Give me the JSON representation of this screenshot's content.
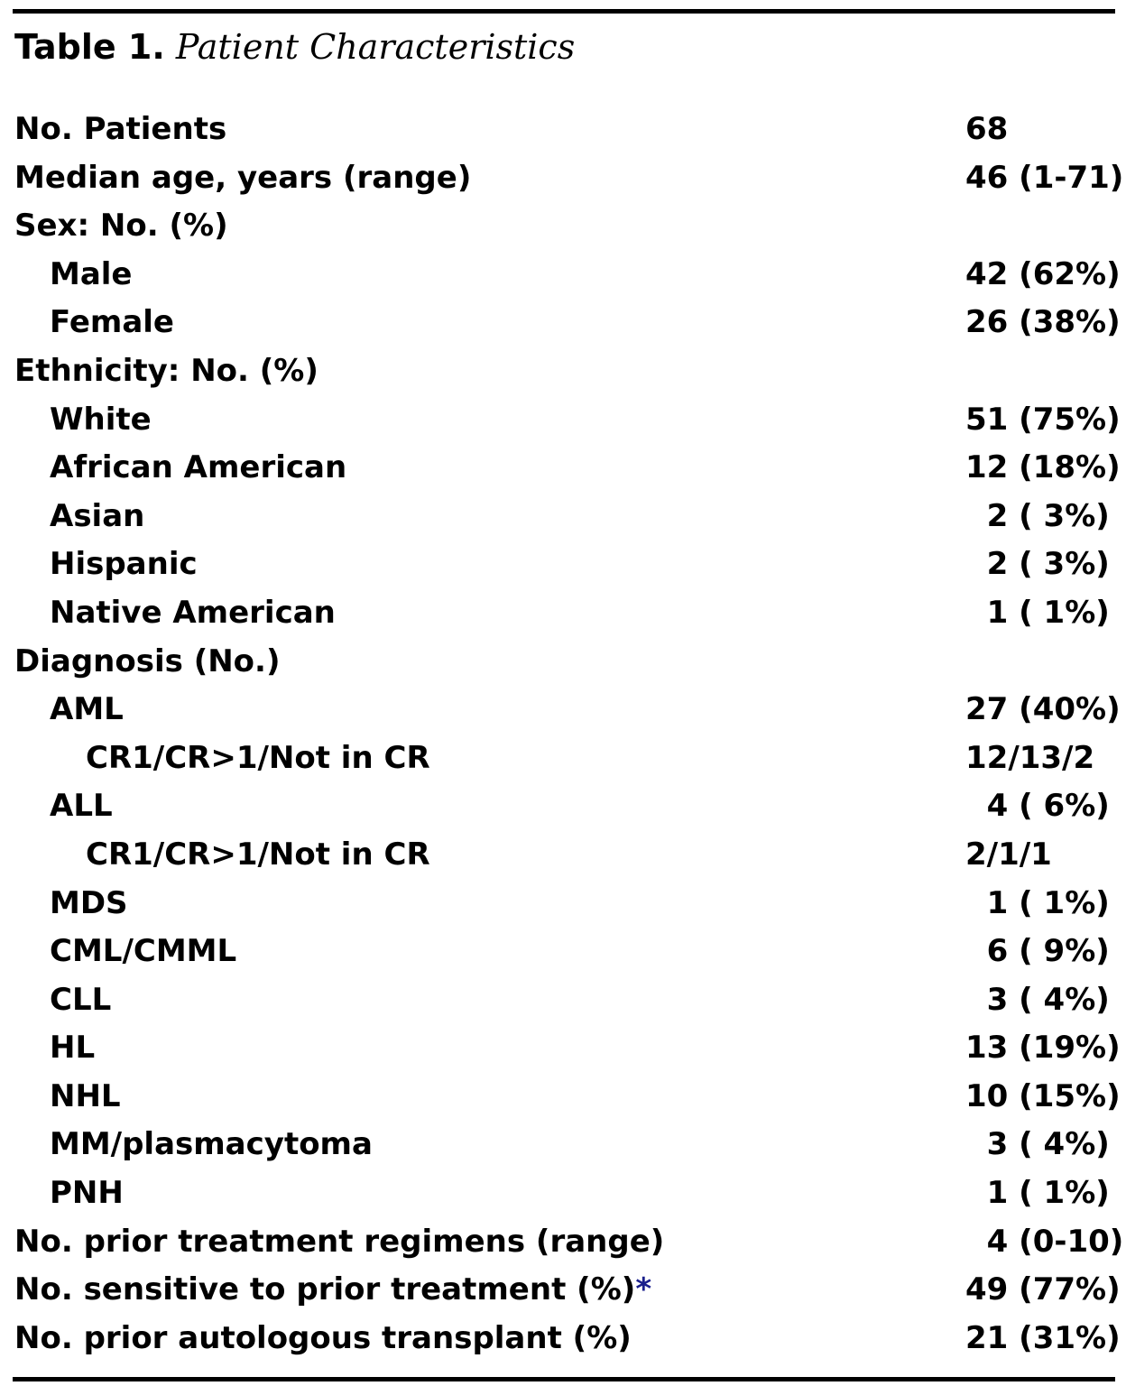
{
  "caption": {
    "label": "Table 1.",
    "title": "Patient Characteristics"
  },
  "rows": [
    {
      "label": "No. Patients",
      "value": "68",
      "level": 0
    },
    {
      "label": "Median age, years (range)",
      "value": "46 (1-71)",
      "level": 0
    },
    {
      "label": "Sex: No. (%)",
      "value": "",
      "level": 0
    },
    {
      "label": "Male",
      "value": "42 (62%)",
      "level": 1
    },
    {
      "label": "Female",
      "value": "26 (38%)",
      "level": 1
    },
    {
      "label": "Ethnicity: No. (%)",
      "value": "",
      "level": 0
    },
    {
      "label": "White",
      "value": "51 (75%)",
      "level": 1
    },
    {
      "label": "African American",
      "value": "12 (18%)",
      "level": 1
    },
    {
      "label": "Asian",
      "value": "  2 ( 3%)",
      "level": 1
    },
    {
      "label": "Hispanic",
      "value": "  2 ( 3%)",
      "level": 1
    },
    {
      "label": "Native American",
      "value": "  1 ( 1%)",
      "level": 1
    },
    {
      "label": "Diagnosis (No.)",
      "value": "",
      "level": 0
    },
    {
      "label": "AML",
      "value": "27 (40%)",
      "level": 1
    },
    {
      "label": "CR1/CR>1/Not in CR",
      "value": "12/13/2",
      "level": 2
    },
    {
      "label": "ALL",
      "value": "  4 ( 6%)",
      "level": 1
    },
    {
      "label": "CR1/CR>1/Not in CR",
      "value": "2/1/1",
      "level": 2
    },
    {
      "label": "MDS",
      "value": "  1 ( 1%)",
      "level": 1
    },
    {
      "label": "CML/CMML",
      "value": "  6 ( 9%)",
      "level": 1
    },
    {
      "label": "CLL",
      "value": "  3 ( 4%)",
      "level": 1
    },
    {
      "label": "HL",
      "value": "13 (19%)",
      "level": 1
    },
    {
      "label": "NHL",
      "value": "10 (15%)",
      "level": 1
    },
    {
      "label": "MM/plasmacytoma",
      "value": "  3 ( 4%)",
      "level": 1
    },
    {
      "label": "PNH",
      "value": "  1 ( 1%)",
      "level": 1
    },
    {
      "label": "No. prior treatment regimens (range)",
      "value": "  4 (0-10)",
      "level": 0
    },
    {
      "label": "No. sensitive to prior treatment (%)",
      "value": "49 (77%)",
      "level": 0,
      "footnote": "*"
    },
    {
      "label": "No. prior autologous transplant (%)",
      "value": "21 (31%)",
      "level": 0
    }
  ]
}
